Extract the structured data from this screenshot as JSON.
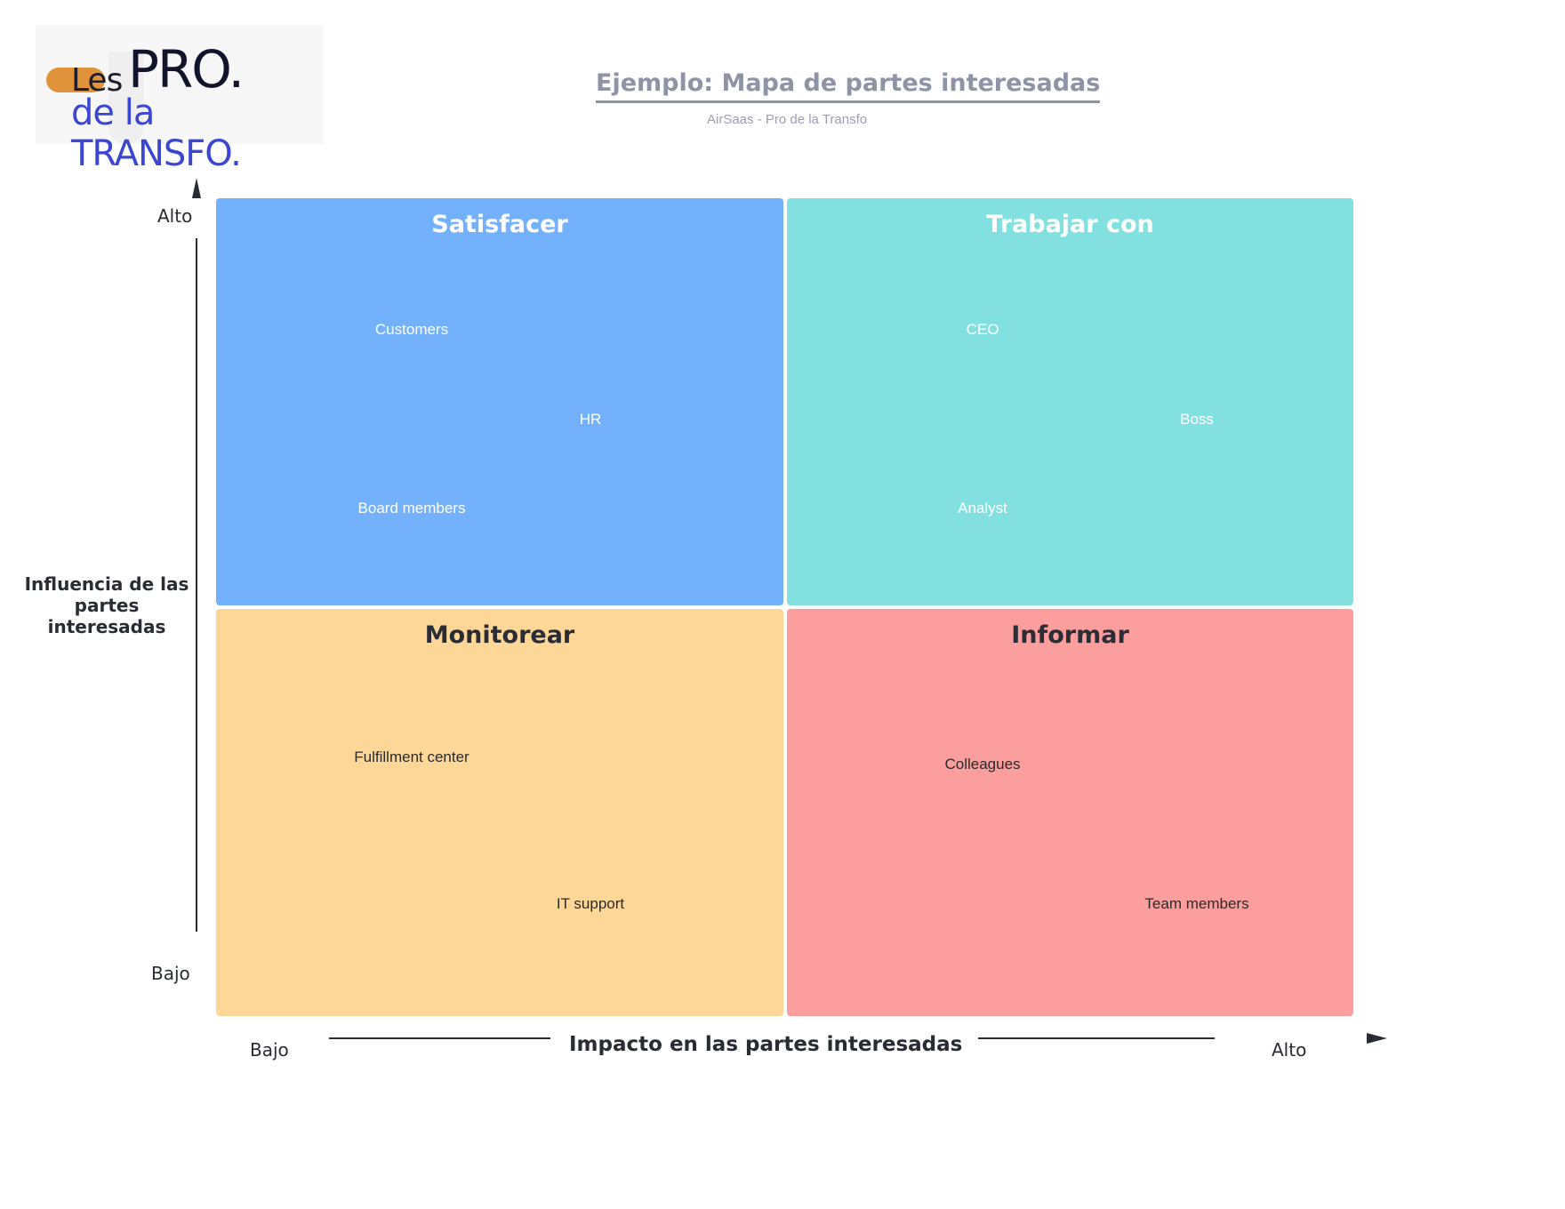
{
  "logo": {
    "line1_a": "Les",
    "line1_b": "PRO.",
    "line2": "de la TRANSFO."
  },
  "header": {
    "title": "Ejemplo: Mapa de partes interesadas",
    "subtitle": "AirSaas - Pro de la Transfo"
  },
  "quadrants": {
    "top_left": {
      "title": "Satisfacer",
      "items": [
        "Customers",
        "HR",
        "Board members"
      ],
      "color": "#74b1fd"
    },
    "top_right": {
      "title": "Trabajar con",
      "items": [
        "CEO",
        "Boss",
        "Analyst"
      ],
      "color": "#83e0e0"
    },
    "bottom_left": {
      "title": "Monitorear",
      "items": [
        "Fulfillment center",
        "IT support"
      ],
      "color": "#fdd798"
    },
    "bottom_right": {
      "title": "Informar",
      "items": [
        "Colleagues",
        "Team members"
      ],
      "color": "#fd9e9e"
    }
  },
  "y_axis": {
    "title": "Influencia de las partes interesadas",
    "title_line1": "Influencia de las",
    "title_line2": "partes interesadas",
    "high": "Alto",
    "low": "Bajo"
  },
  "x_axis": {
    "title": "Impacto en las partes interesadas",
    "low": "Bajo",
    "high": "Alto"
  }
}
